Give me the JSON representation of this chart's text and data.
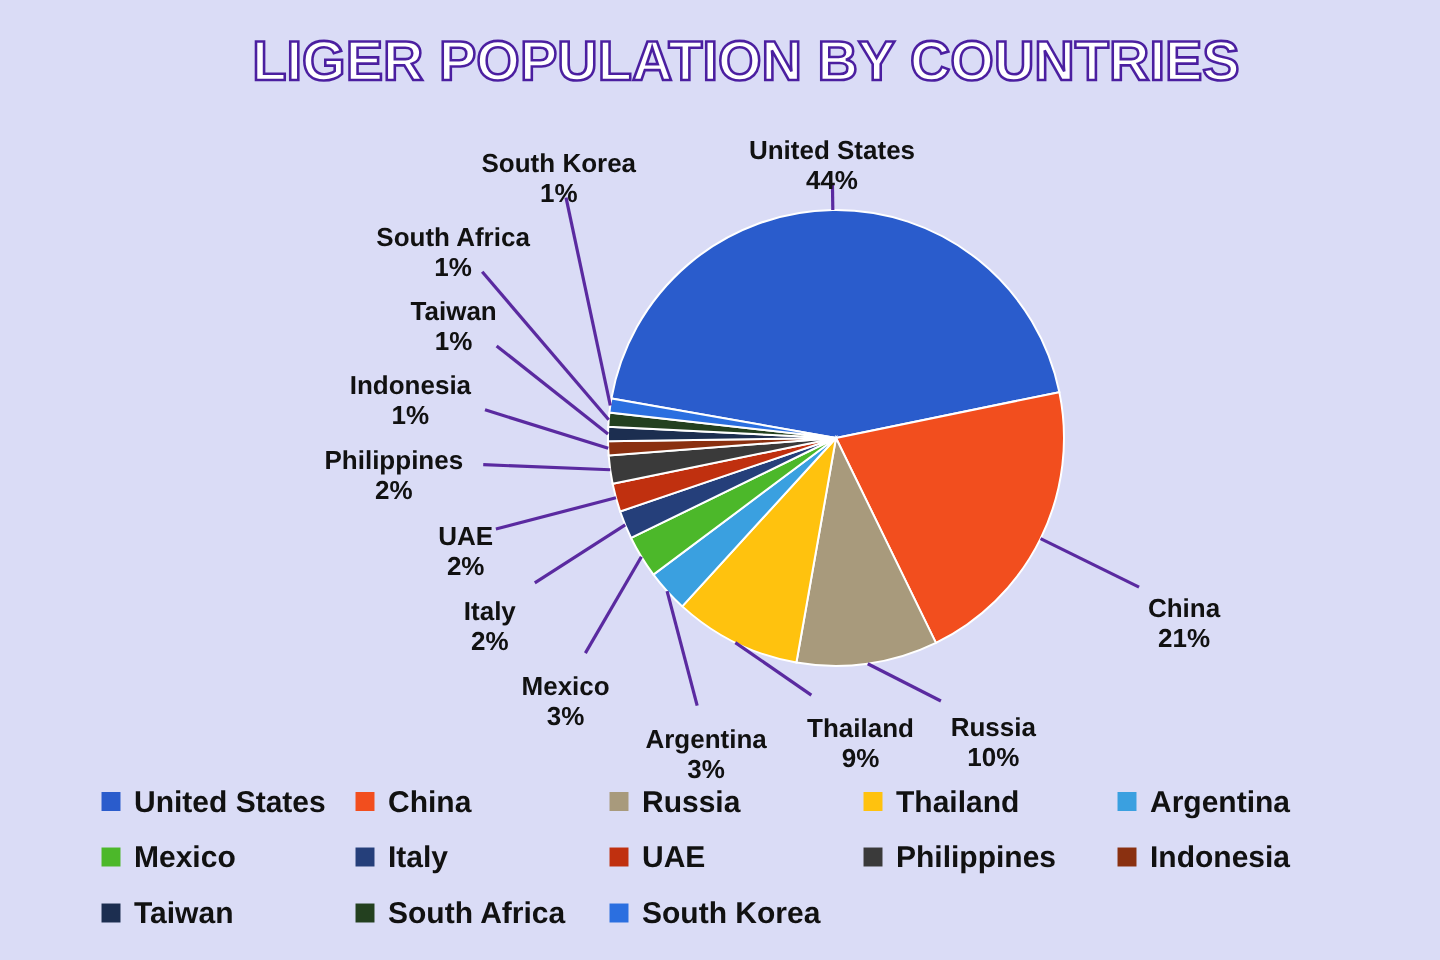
{
  "chart_data": {
    "type": "pie",
    "title": "LIGER POPULATION BY COUNTRIES",
    "categories": [
      "United States",
      "China",
      "Russia",
      "Thailand",
      "Argentina",
      "Mexico",
      "Italy",
      "UAE",
      "Philippines",
      "Indonesia",
      "Taiwan",
      "South Africa",
      "South Korea"
    ],
    "values": [
      44,
      21,
      10,
      9,
      3,
      3,
      2,
      2,
      2,
      1,
      1,
      1,
      1
    ],
    "value_labels": [
      "44%",
      "21%",
      "10%",
      "9%",
      "3%",
      "3%",
      "2%",
      "2%",
      "2%",
      "1%",
      "1%",
      "1%",
      "1%"
    ],
    "colors": [
      "#2a5ccc",
      "#f24e1e",
      "#a89a7c",
      "#ffc20e",
      "#3aa0e0",
      "#4cb82a",
      "#253f7a",
      "#c0300f",
      "#3a3a3a",
      "#8a3010",
      "#1c2e50",
      "#23401f",
      "#2b6fe0"
    ],
    "legend": "bottom"
  }
}
